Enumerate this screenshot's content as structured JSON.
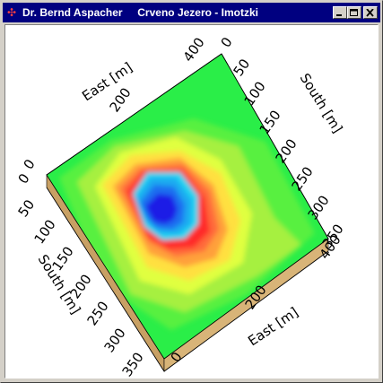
{
  "window": {
    "title_author": "Dr. Bernd Aspacher",
    "title_place": "Crveno Jezero - Imotzki",
    "icon": "app-icon",
    "buttons": [
      "minimize",
      "maximize",
      "close"
    ]
  },
  "chart_data": {
    "type": "heatmap",
    "subtype": "3d-surface-top-view",
    "colormap": [
      "#1a1ae6",
      "#1e6ef0",
      "#1eaaf0",
      "#20d6f0",
      "#ff2a2a",
      "#ff6a3a",
      "#ffa03a",
      "#ffe040",
      "#e0ff40",
      "#a6f040",
      "#58f040",
      "#2aee48"
    ],
    "top_axis": {
      "label": "East [m]",
      "ticks": [
        "0",
        "200",
        "400"
      ]
    },
    "right_axis": {
      "label": "South [m]",
      "ticks": [
        "0",
        "50",
        "100",
        "150",
        "200",
        "250",
        "300",
        "350"
      ]
    },
    "left_axis": {
      "label": "South [m]",
      "ticks": [
        "0",
        "50",
        "100",
        "150",
        "200",
        "250",
        "300",
        "350"
      ]
    },
    "bottom_axis": {
      "label": "East [m]",
      "ticks": [
        "0",
        "200",
        "400"
      ]
    },
    "x_range": [
      0,
      400
    ],
    "y_range": [
      0,
      350
    ],
    "grid": false
  }
}
